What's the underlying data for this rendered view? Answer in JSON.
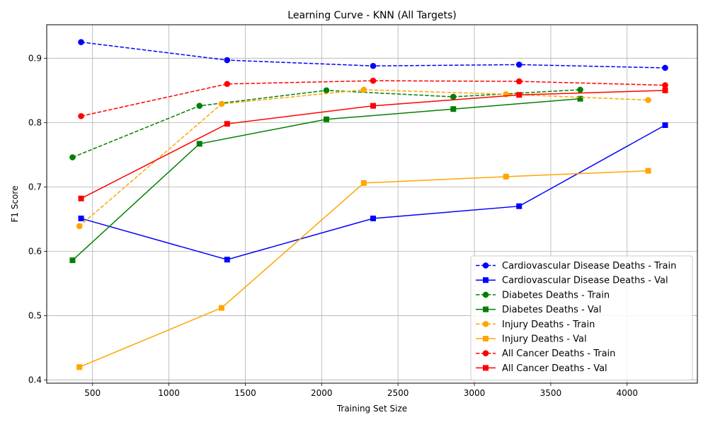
{
  "chart_data": {
    "type": "line",
    "title": "Learning Curve - KNN (All Targets)",
    "xlabel": "Training Set Size",
    "ylabel": "F1 Score",
    "xlim": [
      200,
      4460
    ],
    "ylim": [
      0.395,
      0.952
    ],
    "xticks": [
      500,
      1000,
      1500,
      2000,
      2500,
      3000,
      3500,
      4000
    ],
    "yticks": [
      0.4,
      0.5,
      0.6,
      0.7,
      0.8,
      0.9
    ],
    "grid": true,
    "legend_position": "lower-right",
    "series": [
      {
        "name": "Cardiovascular Disease Deaths - Train",
        "color": "#0000ff",
        "linestyle": "dashed",
        "marker": "circle",
        "x": [
          425,
          1381,
          2337,
          3293,
          4249
        ],
        "y": [
          0.925,
          0.897,
          0.888,
          0.89,
          0.885
        ]
      },
      {
        "name": "Cardiovascular Disease Deaths - Val",
        "color": "#0000ff",
        "linestyle": "solid",
        "marker": "square",
        "x": [
          425,
          1381,
          2337,
          3293,
          4249
        ],
        "y": [
          0.651,
          0.587,
          0.651,
          0.67,
          0.796
        ]
      },
      {
        "name": "Diabetes Deaths - Train",
        "color": "#008000",
        "linestyle": "dashed",
        "marker": "circle",
        "x": [
          369,
          1200,
          2031,
          2862,
          3693
        ],
        "y": [
          0.746,
          0.826,
          0.85,
          0.84,
          0.851
        ]
      },
      {
        "name": "Diabetes Deaths - Val",
        "color": "#008000",
        "linestyle": "solid",
        "marker": "square",
        "x": [
          369,
          1200,
          2031,
          2862,
          3693
        ],
        "y": [
          0.586,
          0.767,
          0.805,
          0.821,
          0.837
        ]
      },
      {
        "name": "Injury Deaths - Train",
        "color": "#ffa500",
        "linestyle": "dashed",
        "marker": "circle",
        "x": [
          414,
          1345,
          2276,
          3207,
          4138
        ],
        "y": [
          0.639,
          0.829,
          0.851,
          0.844,
          0.835
        ]
      },
      {
        "name": "Injury Deaths - Val",
        "color": "#ffa500",
        "linestyle": "solid",
        "marker": "square",
        "x": [
          414,
          1345,
          2276,
          3207,
          4138
        ],
        "y": [
          0.42,
          0.512,
          0.706,
          0.716,
          0.725
        ]
      },
      {
        "name": "All Cancer Deaths - Train",
        "color": "#ff0000",
        "linestyle": "dashed",
        "marker": "circle",
        "x": [
          425,
          1381,
          2337,
          3293,
          4249
        ],
        "y": [
          0.81,
          0.86,
          0.865,
          0.864,
          0.858
        ]
      },
      {
        "name": "All Cancer Deaths - Val",
        "color": "#ff0000",
        "linestyle": "solid",
        "marker": "square",
        "x": [
          425,
          1381,
          2337,
          3293,
          4249
        ],
        "y": [
          0.682,
          0.798,
          0.826,
          0.843,
          0.85
        ]
      }
    ]
  }
}
